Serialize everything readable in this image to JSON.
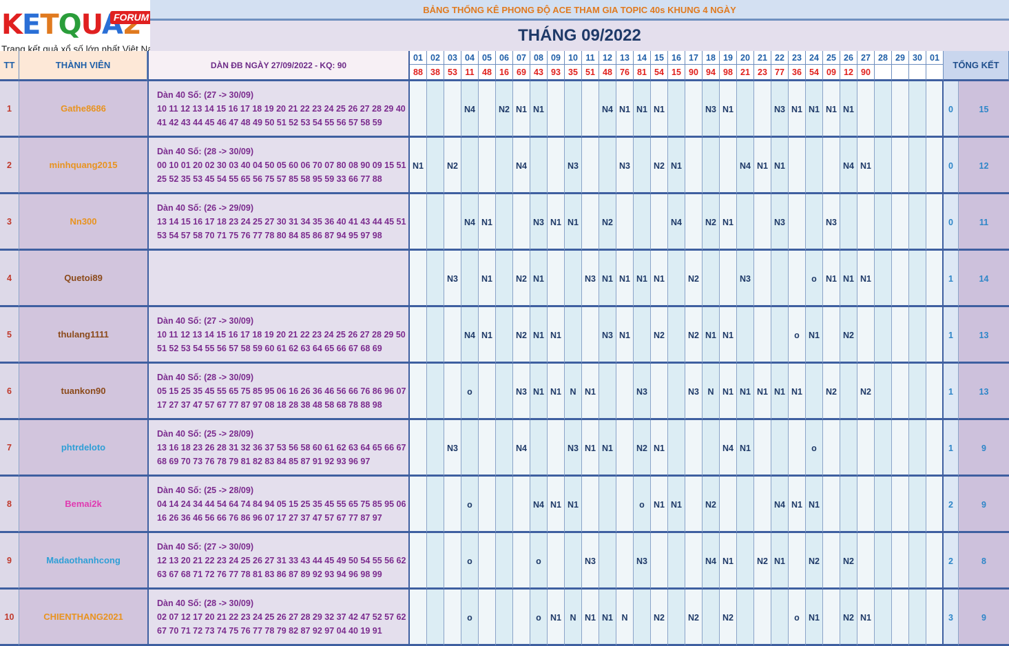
{
  "logo": {
    "letters": [
      {
        "ch": "K",
        "color": "#e02020"
      },
      {
        "ch": "E",
        "color": "#2a6fd6"
      },
      {
        "ch": "T",
        "color": "#e07a1f"
      },
      {
        "ch": "Q",
        "color": "#2a9d3a"
      },
      {
        "ch": "U",
        "color": "#e02020"
      },
      {
        "ch": "A",
        "color": "#2a6fd6"
      },
      {
        "ch": "2",
        "color": "#e07a1f"
      }
    ],
    "forum": "FORUM",
    "tagline": "Trang kết quả xổ số lớn nhất Việt Nam"
  },
  "title": "BẢNG THỐNG KÊ PHONG ĐỘ ACE THAM GIA TOPIC 40s KHUNG 4 NGÀY",
  "month": "THÁNG 09/2022",
  "headers": {
    "tt": "TT",
    "member": "THÀNH VIÊN",
    "dan": "DÀN ĐB NGÀY 27/09/2022 - KQ: 90",
    "summary": "TỔNG KẾT"
  },
  "days": [
    "01",
    "02",
    "03",
    "04",
    "05",
    "06",
    "07",
    "08",
    "09",
    "10",
    "11",
    "12",
    "13",
    "14",
    "15",
    "16",
    "17",
    "18",
    "19",
    "20",
    "21",
    "22",
    "23",
    "24",
    "25",
    "26",
    "27",
    "28",
    "29",
    "30",
    "01"
  ],
  "results": [
    "88",
    "38",
    "53",
    "11",
    "48",
    "16",
    "69",
    "43",
    "93",
    "35",
    "51",
    "48",
    "76",
    "81",
    "54",
    "15",
    "90",
    "94",
    "98",
    "21",
    "23",
    "77",
    "36",
    "54",
    "09",
    "12",
    "90",
    "",
    "",
    "",
    ""
  ],
  "rows": [
    {
      "tt": "1",
      "name": "Gathe8686",
      "name_color": "#e8931f",
      "dan": [
        "Dàn 40 Số: (27 -> 30/09)",
        "10 11 12 13 14 15 16 17 18 19 20 21 22 23 24 25 26 27 28 29 40",
        "41 42 43 44 45 46 47 48 49 50 51 52 53 54 55 56 57 58 59"
      ],
      "cells": [
        "",
        "",
        "",
        "N4",
        "",
        "N2",
        "N1",
        "N1",
        "",
        "",
        "",
        "N4",
        "N1",
        "N1",
        "N1",
        "",
        "",
        "N3",
        "N1",
        "",
        "",
        "N3",
        "N1",
        "N1",
        "N1",
        "N1",
        "",
        "",
        "",
        "",
        ""
      ],
      "t1": "0",
      "t2": "15"
    },
    {
      "tt": "2",
      "name": "minhquang2015",
      "name_color": "#e8931f",
      "dan": [
        "Dàn 40 Số: (28 -> 30/09)",
        "00 10 01 20 02 30 03 40 04 50 05 60 06 70 07 80 08 90 09 15 51",
        "25 52 35 53 45 54 55 65 56 75 57 85 58 95 59 33 66 77 88"
      ],
      "cells": [
        "N1",
        "",
        "N2",
        "",
        "",
        "",
        "N4",
        "",
        "",
        "N3",
        "",
        "",
        "N3",
        "",
        "N2",
        "N1",
        "",
        "",
        "",
        "N4",
        "N1",
        "N1",
        "",
        "",
        "",
        "N4",
        "N1",
        "",
        "",
        "",
        ""
      ],
      "t1": "0",
      "t2": "12"
    },
    {
      "tt": "3",
      "name": "Nn300",
      "name_color": "#e8931f",
      "dan": [
        "Dàn 40 Số: (26 -> 29/09)",
        "13 14 15 16 17 18 23 24 25 27 30 31 34 35 36 40 41 43 44 45 51",
        "53 54 57 58 70 71 75 76 77 78 80 84 85 86 87 94 95 97 98"
      ],
      "cells": [
        "",
        "",
        "",
        "N4",
        "N1",
        "",
        "",
        "N3",
        "N1",
        "N1",
        "",
        "N2",
        "",
        "",
        "",
        "N4",
        "",
        "N2",
        "N1",
        "",
        "",
        "N3",
        "",
        "",
        "N3",
        "",
        "",
        "",
        "",
        "",
        ""
      ],
      "t1": "0",
      "t2": "11"
    },
    {
      "tt": "4",
      "name": "Quetoi89",
      "name_color": "#8b4a1a",
      "dan": [
        "",
        "",
        ""
      ],
      "cells": [
        "",
        "",
        "N3",
        "",
        "N1",
        "",
        "N2",
        "N1",
        "",
        "",
        "N3",
        "N1",
        "N1",
        "N1",
        "N1",
        "",
        "N2",
        "",
        "",
        "N3",
        "",
        "",
        "",
        "o",
        "N1",
        "N1",
        "N1",
        "",
        "",
        "",
        ""
      ],
      "t1": "1",
      "t2": "14"
    },
    {
      "tt": "5",
      "name": "thulang1111",
      "name_color": "#8b4a1a",
      "dan": [
        "Dàn 40 Số: (27 -> 30/09)",
        "10 11 12 13 14 15 16 17 18 19 20 21 22 23 24 25 26 27 28 29 50",
        "51 52 53 54 55 56 57 58 59 60 61 62 63 64 65 66 67 68 69"
      ],
      "cells": [
        "",
        "",
        "",
        "N4",
        "N1",
        "",
        "N2",
        "N1",
        "N1",
        "",
        "",
        "N3",
        "N1",
        "",
        "N2",
        "",
        "N2",
        "N1",
        "N1",
        "",
        "",
        "",
        "o",
        "N1",
        "",
        "N2",
        "",
        "",
        "",
        "",
        ""
      ],
      "t1": "1",
      "t2": "13"
    },
    {
      "tt": "6",
      "name": "tuankon90",
      "name_color": "#8b4a1a",
      "dan": [
        "Dàn 40 Số: (28 -> 30/09)",
        "05 15 25 35 45 55 65 75 85 95 06 16 26 36 46 56 66 76 86 96 07",
        "17 27 37 47 57 67 77 87 97 08 18 28 38 48 58 68 78 88 98"
      ],
      "cells": [
        "",
        "",
        "",
        "o",
        "",
        "",
        "N3",
        "N1",
        "N1",
        "N",
        "N1",
        "",
        "",
        "N3",
        "",
        "",
        "N3",
        "N",
        "N1",
        "N1",
        "N1",
        "N1",
        "N1",
        "",
        "N2",
        "",
        "N2",
        "",
        "",
        "",
        ""
      ],
      "t1": "1",
      "t2": "13"
    },
    {
      "tt": "7",
      "name": "phtrdeloto",
      "name_color": "#2e9fd6",
      "dan": [
        "Dàn 40 Số: (25 -> 28/09)",
        "13 16 18 23 26 28 31 32 36 37 53 56 58 60 61 62 63 64 65 66 67",
        "68 69 70 73 76 78 79 81 82 83 84 85 87 91 92 93 96 97"
      ],
      "cells": [
        "",
        "",
        "N3",
        "",
        "",
        "",
        "N4",
        "",
        "",
        "N3",
        "N1",
        "N1",
        "",
        "N2",
        "N1",
        "",
        "",
        "",
        "N4",
        "N1",
        "",
        "",
        "",
        "o",
        "",
        "",
        "",
        "",
        "",
        "",
        ""
      ],
      "t1": "1",
      "t2": "9"
    },
    {
      "tt": "8",
      "name": "Bemai2k",
      "name_color": "#e03ab0",
      "dan": [
        "Dàn 40 Số: (25 -> 28/09)",
        "04 14 24 34 44 54 64 74 84 94 05 15 25 35 45 55 65 75 85 95 06",
        "16 26 36 46 56 66 76 86 96 07 17 27 37 47 57 67 77 87 97"
      ],
      "cells": [
        "",
        "",
        "",
        "o",
        "",
        "",
        "",
        "N4",
        "N1",
        "N1",
        "",
        "",
        "",
        "o",
        "N1",
        "N1",
        "",
        "N2",
        "",
        "",
        "",
        "N4",
        "N1",
        "N1",
        "",
        "",
        "",
        "",
        "",
        "",
        ""
      ],
      "t1": "2",
      "t2": "9"
    },
    {
      "tt": "9",
      "name": "Madaothanhcong",
      "name_color": "#2e9fd6",
      "dan": [
        "Dàn 40 Số: (27 -> 30/09)",
        "12 13 20 21 22 23 24 25 26 27 31 33 43 44 45 49 50 54 55 56 62",
        "63 67 68 71 72 76 77 78 81 83 86 87 89 92 93 94 96 98 99"
      ],
      "cells": [
        "",
        "",
        "",
        "o",
        "",
        "",
        "",
        "o",
        "",
        "",
        "N3",
        "",
        "",
        "N3",
        "",
        "",
        "",
        "N4",
        "N1",
        "",
        "N2",
        "N1",
        "",
        "N2",
        "",
        "N2",
        "",
        "",
        "",
        "",
        ""
      ],
      "t1": "2",
      "t2": "8"
    },
    {
      "tt": "10",
      "name": "CHIENTHANG2021",
      "name_color": "#e8931f",
      "dan": [
        "Dàn 40 Số: (28 -> 30/09)",
        "02 07 12 17 20 21 22 23 24 25 26 27 28 29 32 37 42 47 52 57 62",
        "67 70 71 72 73 74 75 76 77 78 79 82 87 92 97 04 40 19 91"
      ],
      "cells": [
        "",
        "",
        "",
        "o",
        "",
        "",
        "",
        "o",
        "N1",
        "N",
        "N1",
        "N1",
        "N",
        "",
        "N2",
        "",
        "N2",
        "",
        "N2",
        "",
        "",
        "",
        "o",
        "N1",
        "",
        "N2",
        "N1",
        "",
        "",
        "",
        ""
      ],
      "t1": "3",
      "t2": "9"
    }
  ]
}
